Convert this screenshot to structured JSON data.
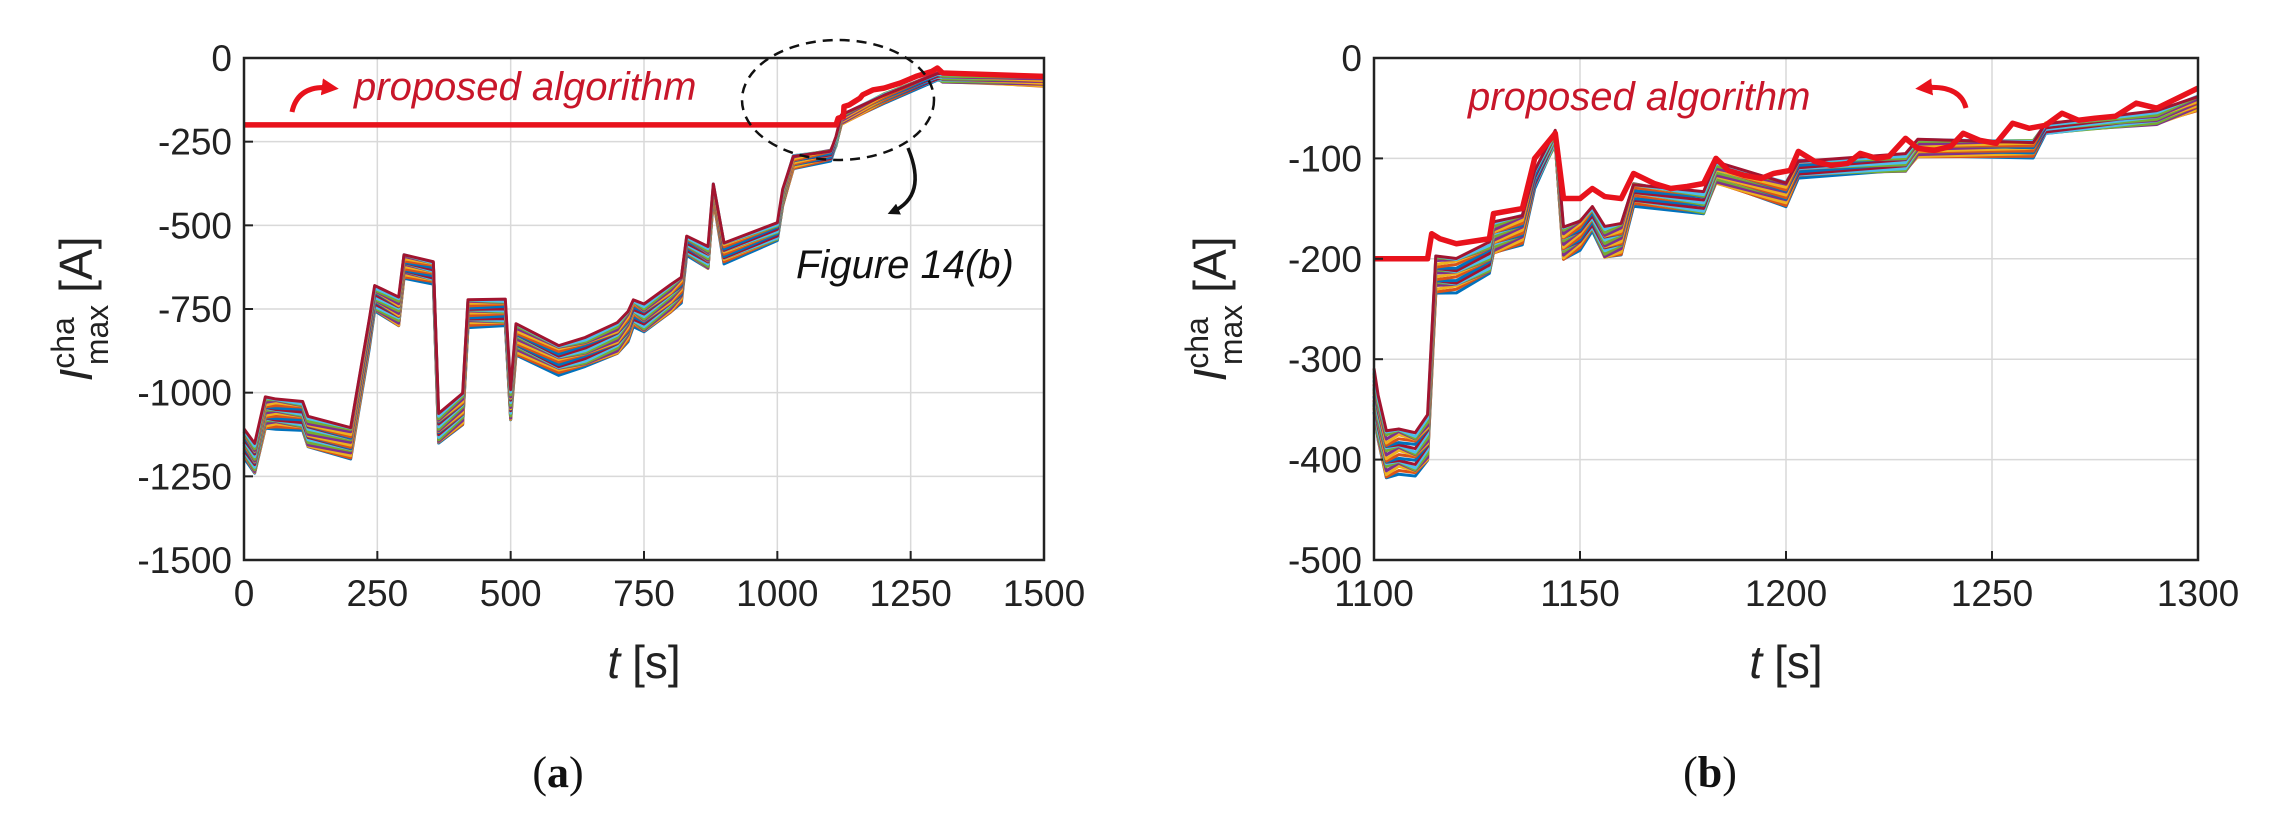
{
  "figure": {
    "panel_a_caption": "a",
    "panel_b_caption": "b"
  },
  "chart_data": [
    {
      "type": "line",
      "panel": "a",
      "xlabel_italic": "t",
      "xlabel_unit": "[s]",
      "ylabel_symbol": "I",
      "ylabel_sup": "cha",
      "ylabel_sub": "max",
      "ylabel_unit": "[A]",
      "xlim": [
        0,
        1500
      ],
      "ylim": [
        -1500,
        0
      ],
      "xticks": [
        0,
        250,
        500,
        750,
        1000,
        1250,
        1500
      ],
      "yticks": [
        0,
        -250,
        -500,
        -750,
        -1000,
        -1250,
        -1500
      ],
      "grid": true,
      "annotations": [
        "proposed algorithm",
        "Figure 14(b)"
      ],
      "highlight_series": {
        "name": "proposed algorithm",
        "color": "#e8121c",
        "x": [
          0,
          1110,
          1114,
          1124,
          1125,
          1135,
          1145,
          1155,
          1160,
          1180,
          1200,
          1230,
          1260,
          1290,
          1300,
          1310,
          1500
        ],
        "y": [
          -200,
          -200,
          -180,
          -175,
          -145,
          -140,
          -130,
          -120,
          -110,
          -95,
          -90,
          -75,
          -55,
          -40,
          -30,
          -45,
          -55
        ]
      },
      "cell_series": {
        "description": "many individual cell current limits (colored bundle)",
        "x": [
          0,
          20,
          40,
          60,
          110,
          120,
          200,
          235,
          245,
          290,
          300,
          355,
          365,
          410,
          420,
          490,
          500,
          510,
          590,
          640,
          700,
          720,
          730,
          750,
          800,
          820,
          830,
          870,
          880,
          900,
          1000,
          1010,
          1030,
          1100,
          1110,
          1120,
          1200,
          1300,
          1310,
          1500
        ],
        "y": [
          -1150,
          -1200,
          -1060,
          -1060,
          -1070,
          -1120,
          -1150,
          -820,
          -720,
          -760,
          -620,
          -640,
          -1110,
          -1050,
          -760,
          -760,
          -1040,
          -840,
          -900,
          -880,
          -840,
          -800,
          -760,
          -780,
          -720,
          -690,
          -560,
          -600,
          -400,
          -580,
          -520,
          -420,
          -310,
          -290,
          -250,
          -185,
          -120,
          -55,
          -60,
          -70
        ],
        "bundle_spread": 90,
        "colors": [
          "#0072bd",
          "#d95319",
          "#edb120",
          "#7e2f8e",
          "#77ac30",
          "#4dbeee",
          "#a2142f"
        ]
      }
    },
    {
      "type": "line",
      "panel": "b",
      "xlabel_italic": "t",
      "xlabel_unit": "[s]",
      "ylabel_symbol": "I",
      "ylabel_sup": "cha",
      "ylabel_sub": "max",
      "ylabel_unit": "[A]",
      "xlim": [
        1100,
        1300
      ],
      "ylim": [
        -500,
        0
      ],
      "xticks": [
        1100,
        1150,
        1200,
        1250,
        1300
      ],
      "yticks": [
        0,
        -100,
        -200,
        -300,
        -400,
        -500
      ],
      "grid": true,
      "annotations": [
        "proposed algorithm"
      ],
      "highlight_series": {
        "name": "proposed algorithm",
        "color": "#e8121c",
        "x": [
          1100,
          1113,
          1114,
          1116,
          1120,
          1128,
          1129,
          1136,
          1139,
          1144,
          1146,
          1150,
          1153,
          1156,
          1160,
          1163,
          1168,
          1172,
          1176,
          1180,
          1183,
          1186,
          1190,
          1194,
          1197,
          1201,
          1203,
          1207,
          1211,
          1215,
          1218,
          1222,
          1225,
          1229,
          1232,
          1236,
          1240,
          1243,
          1247,
          1251,
          1255,
          1259,
          1263,
          1267,
          1271,
          1275,
          1280,
          1285,
          1290,
          1295,
          1300
        ],
        "y": [
          -200,
          -200,
          -175,
          -180,
          -185,
          -180,
          -155,
          -150,
          -100,
          -75,
          -140,
          -140,
          -130,
          -138,
          -140,
          -115,
          -125,
          -130,
          -128,
          -125,
          -100,
          -112,
          -117,
          -120,
          -115,
          -112,
          -93,
          -103,
          -107,
          -105,
          -95,
          -100,
          -98,
          -80,
          -90,
          -92,
          -88,
          -75,
          -82,
          -85,
          -65,
          -70,
          -67,
          -55,
          -62,
          -60,
          -58,
          -45,
          -50,
          -40,
          -30
        ]
      },
      "cell_series": {
        "description": "many individual cell current limits (colored bundle)",
        "x": [
          1100,
          1101,
          1103,
          1106,
          1110,
          1113,
          1115,
          1120,
          1128,
          1129,
          1136,
          1139,
          1144,
          1146,
          1150,
          1153,
          1156,
          1160,
          1163,
          1180,
          1183,
          1200,
          1203,
          1229,
          1232,
          1260,
          1263,
          1290,
          1300
        ],
        "y": [
          -330,
          -360,
          -395,
          -390,
          -395,
          -380,
          -215,
          -215,
          -200,
          -180,
          -170,
          -120,
          -80,
          -185,
          -175,
          -160,
          -185,
          -180,
          -135,
          -145,
          -115,
          -135,
          -110,
          -105,
          -90,
          -90,
          -70,
          -60,
          -45
        ],
        "bundle_spread": 45,
        "colors": [
          "#0072bd",
          "#d95319",
          "#edb120",
          "#7e2f8e",
          "#77ac30",
          "#4dbeee",
          "#a2142f"
        ]
      }
    }
  ]
}
